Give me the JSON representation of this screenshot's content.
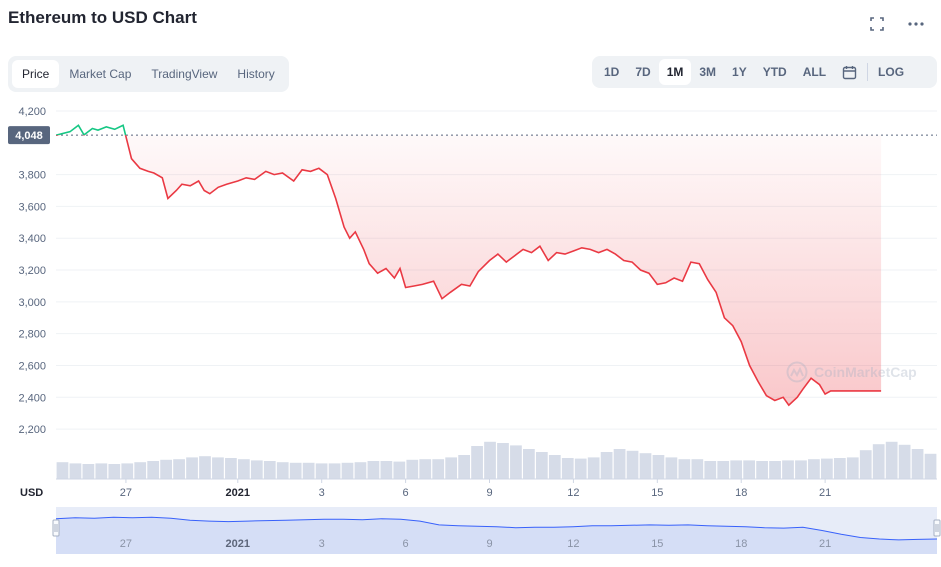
{
  "header": {
    "title": "Ethereum to USD Chart",
    "fullscreen_icon": "fullscreen-icon",
    "more_icon": "more-horizontal-icon"
  },
  "tabs": [
    {
      "label": "Price",
      "active": true
    },
    {
      "label": "Market Cap",
      "active": false
    },
    {
      "label": "TradingView",
      "active": false
    },
    {
      "label": "History",
      "active": false
    }
  ],
  "ranges": [
    {
      "label": "1D",
      "active": false
    },
    {
      "label": "7D",
      "active": false
    },
    {
      "label": "1M",
      "active": true
    },
    {
      "label": "3M",
      "active": false
    },
    {
      "label": "1Y",
      "active": false
    },
    {
      "label": "YTD",
      "active": false
    },
    {
      "label": "ALL",
      "active": false
    }
  ],
  "calendar_icon": "calendar-icon",
  "log_label": "LOG",
  "watermark": "CoinMarketCap",
  "colors": {
    "up": "#16c784",
    "down": "#ea3943",
    "reference": "#58667e",
    "volume": "#cfd6e4",
    "navigator_fill": "#e7ecf8",
    "navigator_line": "#3861fb"
  },
  "chart_data": {
    "type": "line",
    "title": "Ethereum to USD Chart",
    "ylabel": "USD",
    "ylim": [
      2100,
      4200
    ],
    "yticks": [
      4200,
      3800,
      3600,
      3400,
      3200,
      3000,
      2800,
      2600,
      2400,
      2200
    ],
    "x_range": [
      24.5,
      56
    ],
    "xticks": [
      {
        "x": 27,
        "label": "27",
        "bold": false
      },
      {
        "x": 31,
        "label": "2021",
        "bold": true
      },
      {
        "x": 34,
        "label": "3",
        "bold": false
      },
      {
        "x": 37,
        "label": "6",
        "bold": false
      },
      {
        "x": 40,
        "label": "9",
        "bold": false
      },
      {
        "x": 43,
        "label": "12",
        "bold": false
      },
      {
        "x": 46,
        "label": "15",
        "bold": false
      },
      {
        "x": 49,
        "label": "18",
        "bold": false
      },
      {
        "x": 52,
        "label": "21",
        "bold": false
      }
    ],
    "reference_value": 4048,
    "reference_label": "4,048",
    "series": [
      {
        "x": [
          24.5,
          25.0,
          25.3,
          25.5,
          25.8,
          26.0,
          26.3,
          26.6,
          26.9,
          27.0,
          27.2,
          27.5,
          27.8,
          28.0,
          28.3,
          28.5,
          28.8,
          29.0,
          29.3,
          29.6,
          29.8,
          30.0,
          30.3,
          30.6,
          31.0,
          31.3,
          31.6,
          32.0,
          32.3,
          32.6,
          33.0,
          33.3,
          33.6,
          33.9,
          34.2,
          34.5,
          34.8,
          35.0,
          35.2,
          35.5,
          35.7,
          35.9,
          36.0,
          36.3,
          36.6,
          36.8,
          37.0,
          37.3,
          37.6,
          38.0,
          38.3,
          38.6,
          39.0,
          39.3,
          39.6,
          40.0,
          40.3,
          40.6,
          40.9,
          41.2,
          41.5,
          41.8,
          42.1,
          42.4,
          42.7,
          43.0,
          43.3,
          43.6,
          43.9,
          44.2,
          44.5,
          44.8,
          45.1,
          45.4,
          45.7,
          46.0,
          46.3,
          46.6,
          46.9,
          47.2,
          47.5,
          47.8,
          48.1,
          48.4,
          48.7,
          49.0,
          49.3,
          49.6,
          49.9,
          50.2,
          50.5,
          50.7,
          51.0,
          51.2,
          51.5,
          51.8,
          52.0,
          52.2,
          52.5,
          52.7,
          53.0,
          53.2,
          53.5,
          53.8,
          54.0
        ],
        "y": [
          4048,
          4070,
          4110,
          4050,
          4090,
          4080,
          4100,
          4085,
          4110,
          4040,
          3900,
          3840,
          3820,
          3810,
          3780,
          3650,
          3700,
          3740,
          3730,
          3760,
          3700,
          3680,
          3720,
          3740,
          3760,
          3780,
          3770,
          3820,
          3800,
          3810,
          3760,
          3830,
          3820,
          3840,
          3800,
          3650,
          3470,
          3400,
          3440,
          3330,
          3240,
          3200,
          3180,
          3210,
          3150,
          3210,
          3090,
          3100,
          3110,
          3130,
          3020,
          3060,
          3110,
          3100,
          3190,
          3260,
          3300,
          3250,
          3290,
          3330,
          3310,
          3350,
          3260,
          3310,
          3300,
          3320,
          3340,
          3330,
          3310,
          3330,
          3300,
          3260,
          3250,
          3200,
          3180,
          3110,
          3120,
          3150,
          3130,
          3250,
          3240,
          3140,
          3060,
          2900,
          2850,
          2750,
          2600,
          2500,
          2410,
          2380,
          2400,
          2350,
          2400,
          2450,
          2520,
          2480,
          2420,
          2440,
          2440,
          2440,
          2440,
          2440,
          2440,
          2440,
          2440
        ]
      }
    ],
    "volume_relative": [
      0.28,
      0.26,
      0.25,
      0.26,
      0.25,
      0.26,
      0.28,
      0.3,
      0.32,
      0.33,
      0.36,
      0.38,
      0.36,
      0.35,
      0.33,
      0.31,
      0.3,
      0.28,
      0.27,
      0.27,
      0.26,
      0.26,
      0.27,
      0.28,
      0.3,
      0.3,
      0.29,
      0.32,
      0.33,
      0.33,
      0.36,
      0.4,
      0.55,
      0.62,
      0.6,
      0.56,
      0.5,
      0.45,
      0.4,
      0.35,
      0.34,
      0.36,
      0.45,
      0.5,
      0.47,
      0.43,
      0.4,
      0.36,
      0.33,
      0.33,
      0.3,
      0.3,
      0.31,
      0.31,
      0.3,
      0.3,
      0.31,
      0.31,
      0.33,
      0.34,
      0.35,
      0.36,
      0.48,
      0.58,
      0.62,
      0.57,
      0.5,
      0.42
    ],
    "navigator_relative": [
      0.75,
      0.77,
      0.76,
      0.78,
      0.77,
      0.78,
      0.76,
      0.72,
      0.7,
      0.69,
      0.7,
      0.71,
      0.72,
      0.73,
      0.74,
      0.74,
      0.73,
      0.75,
      0.74,
      0.7,
      0.62,
      0.6,
      0.59,
      0.58,
      0.56,
      0.57,
      0.57,
      0.58,
      0.6,
      0.6,
      0.61,
      0.62,
      0.61,
      0.62,
      0.6,
      0.59,
      0.58,
      0.56,
      0.55,
      0.57,
      0.5,
      0.42,
      0.35,
      0.32,
      0.3,
      0.31,
      0.32
    ]
  }
}
